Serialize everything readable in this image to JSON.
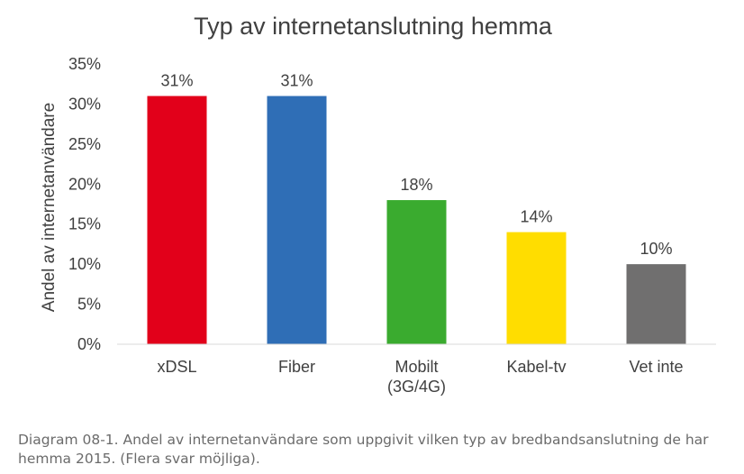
{
  "chart_data": {
    "type": "bar",
    "title": "Typ av internetanslutning hemma",
    "xlabel": "",
    "ylabel": "Andel av internetanvändare",
    "categories": [
      "xDSL",
      "Fiber",
      "Mobilt\n(3G/4G)",
      "Kabel-tv",
      "Vet inte"
    ],
    "values": [
      31,
      31,
      18,
      14,
      10
    ],
    "value_labels": [
      "31%",
      "31%",
      "18%",
      "14%",
      "10%"
    ],
    "colors": [
      "#e2001a",
      "#2f6eb6",
      "#3aab2f",
      "#ffdd00",
      "#706f6f"
    ],
    "ylim": [
      0,
      35
    ],
    "yticks": [
      0,
      5,
      10,
      15,
      20,
      25,
      30,
      35
    ],
    "ytick_labels": [
      "0%",
      "5%",
      "10%",
      "15%",
      "20%",
      "25%",
      "30%",
      "35%"
    ],
    "grid": false,
    "legend": "none"
  },
  "caption": "Diagram 08-1. Andel av internetanvändare som uppgivit vilken typ av bredbandsanslutning de har hemma 2015. (Flera svar möjliga)."
}
